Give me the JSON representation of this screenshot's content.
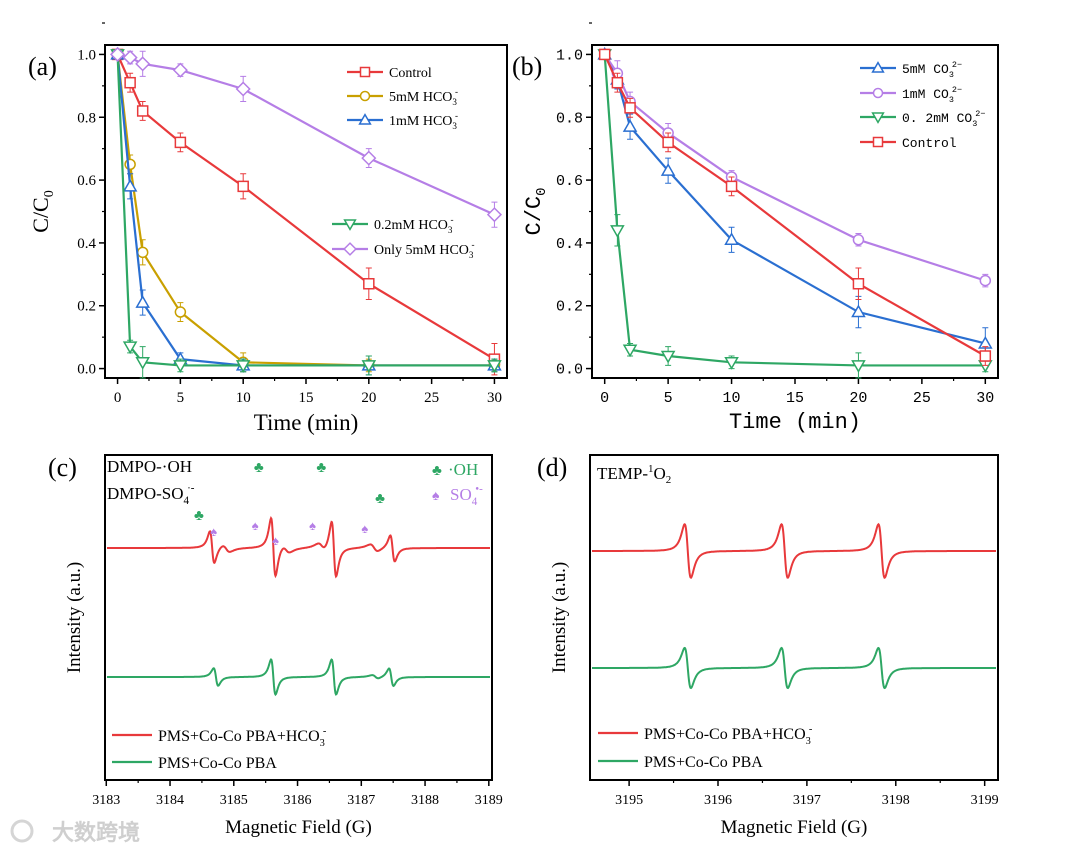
{
  "colors": {
    "red": "#e8393b",
    "gold": "#c9a000",
    "blue": "#2a6fd1",
    "green": "#2ea764",
    "purple": "#b57ee6",
    "axis": "#000000"
  },
  "watermark": "大数跨境",
  "chart_data": [
    {
      "panel_label": "(a)",
      "type": "line",
      "xlabel": "Time (min)",
      "ylabel": {
        "main": "C/C",
        "sub": "0"
      },
      "xlim": [
        -1,
        31
      ],
      "ylim": [
        -0.03,
        1.03
      ],
      "xticks": [
        "0",
        "5",
        "10",
        "15",
        "20",
        "25",
        "30"
      ],
      "yticks": [
        "0.0",
        "0.2",
        "0.4",
        "0.6",
        "0.8",
        "1.0"
      ],
      "x": [
        0,
        1,
        2,
        5,
        10,
        20,
        30
      ],
      "legend_placement": "top-right",
      "series": [
        {
          "name": "Control",
          "label": {
            "main": "Control",
            "sub": "",
            "sup": ""
          },
          "color": "red",
          "marker": "square",
          "values": [
            1.0,
            0.91,
            0.82,
            0.72,
            0.58,
            0.27,
            0.03
          ],
          "err": [
            0.01,
            0.03,
            0.03,
            0.03,
            0.04,
            0.05,
            0.05
          ]
        },
        {
          "name": "5mM HCO3-",
          "label": {
            "main": "5mM HCO",
            "sub": "3",
            "sup": "-"
          },
          "color": "gold",
          "marker": "circle",
          "values": [
            1.0,
            0.65,
            0.37,
            0.18,
            0.02,
            0.01,
            0.01
          ],
          "err": [
            0.01,
            0.03,
            0.04,
            0.03,
            0.03,
            0.02,
            0.02
          ]
        },
        {
          "name": "1mM HCO3-",
          "label": {
            "main": "1mM HCO",
            "sub": "3",
            "sup": "-"
          },
          "color": "blue",
          "marker": "triangle-up",
          "values": [
            1.0,
            0.58,
            0.21,
            0.03,
            0.01,
            0.01,
            0.01
          ],
          "err": [
            0.01,
            0.04,
            0.04,
            0.02,
            0.02,
            0.03,
            0.02
          ]
        },
        {
          "name": "0.2mM HCO3-",
          "label": {
            "main": "0.2mM HCO",
            "sub": "3",
            "sup": "-"
          },
          "color": "green",
          "marker": "triangle-down",
          "values": [
            1.0,
            0.07,
            0.02,
            0.01,
            0.01,
            0.01,
            0.01
          ],
          "err": [
            0.01,
            0.02,
            0.05,
            0.02,
            0.02,
            0.03,
            0.02
          ]
        },
        {
          "name": "Only 5mM HCO3-",
          "label": {
            "main": "Only 5mM HCO",
            "sub": "3",
            "sup": "-"
          },
          "color": "purple",
          "marker": "diamond",
          "values": [
            1.0,
            0.99,
            0.97,
            0.95,
            0.89,
            0.67,
            0.49
          ],
          "err": [
            0.01,
            0.02,
            0.04,
            0.02,
            0.04,
            0.03,
            0.04
          ]
        }
      ]
    },
    {
      "panel_label": "(b)",
      "type": "line",
      "xlabel": "Time (min)",
      "ylabel": {
        "main": "C/C",
        "sub": "0"
      },
      "xlim": [
        -1,
        31
      ],
      "ylim": [
        -0.03,
        1.03
      ],
      "xticks": [
        "0",
        "5",
        "10",
        "15",
        "20",
        "25",
        "30"
      ],
      "yticks": [
        "0.0",
        "0.2",
        "0.4",
        "0.6",
        "0.8",
        "1.0"
      ],
      "x": [
        0,
        1,
        2,
        5,
        10,
        20,
        30
      ],
      "legend_placement": "top-right",
      "series": [
        {
          "name": "5mM CO3 2-",
          "label": {
            "main": "5mM CO",
            "sub": "3",
            "sup": "2−"
          },
          "color": "blue",
          "marker": "triangle-up",
          "values": [
            1.0,
            0.92,
            0.77,
            0.63,
            0.41,
            0.18,
            0.08
          ],
          "err": [
            0.01,
            0.03,
            0.04,
            0.04,
            0.04,
            0.05,
            0.05
          ]
        },
        {
          "name": "1mM CO3 2-",
          "label": {
            "main": "1mM CO",
            "sub": "3",
            "sup": "2−"
          },
          "color": "purple",
          "marker": "circle",
          "values": [
            1.0,
            0.94,
            0.85,
            0.75,
            0.61,
            0.41,
            0.28
          ],
          "err": [
            0.01,
            0.04,
            0.03,
            0.03,
            0.02,
            0.02,
            0.02
          ]
        },
        {
          "name": "0.2mM CO3 2-",
          "label": {
            "main": "0. 2mM CO",
            "sub": "3",
            "sup": "2−"
          },
          "color": "green",
          "marker": "triangle-down",
          "values": [
            1.0,
            0.44,
            0.06,
            0.04,
            0.02,
            0.01,
            0.01
          ],
          "err": [
            0.01,
            0.05,
            0.02,
            0.03,
            0.02,
            0.04,
            0.02
          ]
        },
        {
          "name": "Control",
          "label": {
            "main": "Control",
            "sub": "",
            "sup": ""
          },
          "color": "red",
          "marker": "square",
          "values": [
            1.0,
            0.91,
            0.83,
            0.72,
            0.58,
            0.27,
            0.04
          ],
          "err": [
            0.01,
            0.03,
            0.03,
            0.03,
            0.03,
            0.05,
            0.03
          ]
        }
      ]
    },
    {
      "panel_label": "(c)",
      "type": "line",
      "xlabel": "Magnetic Field (G)",
      "ylabel": {
        "main": "Intensity (a.u.)"
      },
      "xlim": [
        3182.98,
        3189.05
      ],
      "xticks": [
        "3183",
        "3184",
        "3185",
        "3186",
        "3187",
        "3188",
        "3189"
      ],
      "annotations": {
        "adduct1": "DMPO-·OH",
        "adduct2": {
          "main": "DMPO-SO",
          "sub": "4",
          "sup": "·-"
        },
        "oh_symbol": "♣",
        "so4_symbol": "♠",
        "oh_legend": "·OH",
        "so4_legend": {
          "main": "SO",
          "sub": "4",
          "sup": "•-"
        }
      },
      "oh_peaks": [
        3184.61,
        3185.55,
        3186.53,
        3187.45
      ],
      "so4_peaks": [
        3184.78,
        3185.43,
        3185.75,
        3186.33,
        3187.15
      ],
      "series": [
        {
          "name": "PMS+Co-Co PBA+HCO3-",
          "label": {
            "main": "PMS+Co-Co PBA+HCO",
            "sub": "3",
            "sup": "-"
          },
          "color": "red",
          "lines": [
            {
              "center": 3184.66,
              "amp": 0.55,
              "width": 0.035
            },
            {
              "center": 3185.62,
              "amp": 1.0,
              "width": 0.035
            },
            {
              "center": 3186.57,
              "amp": 0.95,
              "width": 0.035
            },
            {
              "center": 3187.49,
              "amp": 0.45,
              "width": 0.035
            },
            {
              "center": 3184.88,
              "amp": 0.12,
              "width": 0.06
            },
            {
              "center": 3185.82,
              "amp": 0.12,
              "width": 0.06
            },
            {
              "center": 3186.38,
              "amp": 0.12,
              "width": 0.06
            },
            {
              "center": 3187.2,
              "amp": 0.12,
              "width": 0.06
            }
          ]
        },
        {
          "name": "PMS+Co-Co PBA",
          "label": {
            "main": "PMS+Co-Co PBA",
            "sub": "",
            "sup": ""
          },
          "color": "green",
          "lines": [
            {
              "center": 3184.72,
              "amp": 0.3,
              "width": 0.035
            },
            {
              "center": 3185.62,
              "amp": 0.6,
              "width": 0.035
            },
            {
              "center": 3186.57,
              "amp": 0.6,
              "width": 0.035
            },
            {
              "center": 3187.47,
              "amp": 0.3,
              "width": 0.035
            },
            {
              "center": 3187.22,
              "amp": 0.06,
              "width": 0.05
            }
          ]
        }
      ]
    },
    {
      "panel_label": "(d)",
      "type": "line",
      "xlabel": "Magnetic Field (G)",
      "ylabel": {
        "main": "Intensity (a.u.)"
      },
      "xlim": [
        3194.56,
        3199.15
      ],
      "xticks": [
        "3195",
        "3196",
        "3197",
        "3198",
        "3199"
      ],
      "annotations": {
        "adduct": {
          "main": "TEMP-",
          "sup": "1",
          "main2": "O",
          "sub": "2"
        }
      },
      "series": [
        {
          "name": "PMS+Co-Co PBA+HCO3-",
          "label": {
            "main": "PMS+Co-Co PBA+HCO",
            "sub": "3",
            "sup": "-"
          },
          "color": "red",
          "lines": [
            {
              "center": 3195.66,
              "amp": 1.0,
              "width": 0.035
            },
            {
              "center": 3196.75,
              "amp": 1.0,
              "width": 0.035
            },
            {
              "center": 3197.84,
              "amp": 1.0,
              "width": 0.035
            }
          ]
        },
        {
          "name": "PMS+Co-Co PBA",
          "label": {
            "main": "PMS+Co-Co PBA",
            "sub": "",
            "sup": ""
          },
          "color": "green",
          "lines": [
            {
              "center": 3195.66,
              "amp": 0.75,
              "width": 0.035
            },
            {
              "center": 3196.75,
              "amp": 0.75,
              "width": 0.035
            },
            {
              "center": 3197.84,
              "amp": 0.75,
              "width": 0.035
            }
          ]
        }
      ]
    }
  ]
}
